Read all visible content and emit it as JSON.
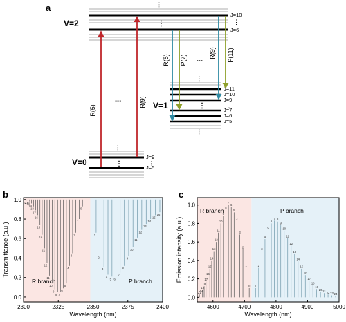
{
  "panel_a": {
    "label": "a",
    "v2": "V=2",
    "v1": "V=1",
    "v0": "V=0",
    "v2_levels": [
      "J=10",
      "J=6"
    ],
    "v1_levels": [
      "J=11",
      "J=10",
      "J=9",
      "J=7",
      "J=6",
      "J=5"
    ],
    "v0_levels": [
      "J=9",
      "J=5"
    ],
    "abs_labels": [
      "R(5)",
      "R(9)"
    ],
    "em_labels": [
      "R(5)",
      "P(7)",
      "R(9)",
      "P(11)"
    ],
    "ellipsis": "...",
    "vdots": "⋮",
    "colors": {
      "absorption": "#c0262b",
      "emission_r": "#2f8aa3",
      "emission_p": "#8fa02a"
    }
  },
  "chart_data": [
    {
      "panel": "b",
      "type": "bar",
      "xlabel": "Wavelength (nm)",
      "ylabel": "Transmittance (a.u.)",
      "xlim": [
        2300,
        2400
      ],
      "ylim": [
        -0.05,
        1.02
      ],
      "xticks": [
        2300,
        2325,
        2350,
        2375,
        2400
      ],
      "yticks": [
        0.0,
        0.2,
        0.4,
        0.6,
        0.8,
        1.0
      ],
      "regions": [
        {
          "label": "R branch",
          "from": 2300,
          "to": 2348,
          "color": "#fbe6e3"
        },
        {
          "label": "P branch",
          "from": 2348,
          "to": 2400,
          "color": "#e5f1f8"
        }
      ],
      "series": [
        {
          "branch": "R",
          "x": [
            2342.4,
            2340.0,
            2337.6,
            2335.3,
            2333.0,
            2330.8,
            2328.6,
            2326.5,
            2324.5,
            2322.5,
            2320.6,
            2318.7,
            2316.9,
            2315.1,
            2313.4,
            2311.8,
            2310.2,
            2308.7,
            2307.2,
            2305.8,
            2304.4,
            2303.1,
            2301.9
          ],
          "y": [
            0.93,
            0.8,
            0.66,
            0.45,
            0.32,
            0.14,
            0.09,
            0.05,
            0.05,
            0.08,
            0.14,
            0.22,
            0.35,
            0.5,
            0.64,
            0.74,
            0.84,
            0.89,
            0.93,
            0.96,
            0.98,
            0.99,
            0.99
          ],
          "labels": [
            "0",
            "1",
            "2",
            "3",
            "4",
            "5",
            "6",
            "7",
            "8",
            "9",
            "10",
            "11",
            "12",
            "13",
            "14",
            "15",
            "16",
            "17",
            "18",
            "19",
            "20",
            "21",
            "22"
          ]
        },
        {
          "branch": "P",
          "x": [
            2352.2,
            2355.0,
            2357.8,
            2360.7,
            2363.6,
            2366.5,
            2369.5,
            2372.5,
            2375.6,
            2378.7,
            2381.8,
            2385.0,
            2388.2,
            2391.4,
            2394.7,
            2398.0
          ],
          "y": [
            0.66,
            0.43,
            0.31,
            0.23,
            0.21,
            0.21,
            0.25,
            0.32,
            0.42,
            0.51,
            0.61,
            0.69,
            0.75,
            0.8,
            0.84,
            0.87
          ],
          "labels": [
            "1",
            "2",
            "3",
            "4",
            "5",
            "6",
            "7",
            "8",
            "9",
            "10",
            "11",
            "12",
            "13",
            "14",
            "15",
            "16"
          ]
        }
      ]
    },
    {
      "panel": "c",
      "type": "bar",
      "xlabel": "Wavelength (nm)",
      "ylabel": "Emission intensity (a.u.)",
      "xlim": [
        4550,
        5000
      ],
      "ylim": [
        -0.05,
        1.08
      ],
      "xticks": [
        4600,
        4700,
        4800,
        4900,
        5000
      ],
      "yticks": [
        0.0,
        0.2,
        0.4,
        0.6,
        0.8,
        1.0
      ],
      "regions": [
        {
          "label": "R branch",
          "from": 4550,
          "to": 4722,
          "color": "#fbe6e3"
        },
        {
          "label": "P branch",
          "from": 4722,
          "to": 5000,
          "color": "#e5f1f8"
        }
      ],
      "series": [
        {
          "branch": "R",
          "x": [
            4715,
            4705,
            4695,
            4685,
            4676,
            4667,
            4658,
            4649,
            4641,
            4633,
            4625,
            4617,
            4610,
            4603,
            4596,
            4590,
            4584,
            4578,
            4572,
            4567,
            4562,
            4557
          ],
          "y": [
            0.1,
            0.32,
            0.52,
            0.68,
            0.82,
            0.92,
            0.98,
            1.0,
            0.95,
            0.88,
            0.8,
            0.7,
            0.6,
            0.5,
            0.4,
            0.31,
            0.23,
            0.17,
            0.12,
            0.08,
            0.05,
            0.03
          ],
          "labels": [
            "0",
            "1",
            "2",
            "3",
            "4",
            "5",
            "6",
            "7",
            "8",
            "9",
            "10",
            "11",
            "12",
            "13",
            "14",
            "15",
            "16",
            "17",
            "18",
            "19",
            "20",
            "21"
          ]
        },
        {
          "branch": "P",
          "x": [
            4735,
            4745,
            4755,
            4765,
            4775,
            4785,
            4795,
            4805,
            4815,
            4826,
            4837,
            4848,
            4859,
            4870,
            4881,
            4893,
            4905,
            4917,
            4929,
            4941,
            4953,
            4965,
            4977,
            4989
          ],
          "y": [
            0.1,
            0.32,
            0.5,
            0.63,
            0.73,
            0.8,
            0.83,
            0.82,
            0.78,
            0.72,
            0.64,
            0.56,
            0.47,
            0.39,
            0.31,
            0.24,
            0.18,
            0.13,
            0.09,
            0.06,
            0.045,
            0.03,
            0.02,
            0.015
          ],
          "labels": [
            "1",
            "2",
            "3",
            "4",
            "5",
            "6",
            "7",
            "8",
            "9",
            "10",
            "11",
            "12",
            "13",
            "14",
            "15",
            "16",
            "17",
            "18",
            "19",
            "20",
            "21",
            "22",
            "23",
            "24"
          ]
        }
      ]
    }
  ]
}
